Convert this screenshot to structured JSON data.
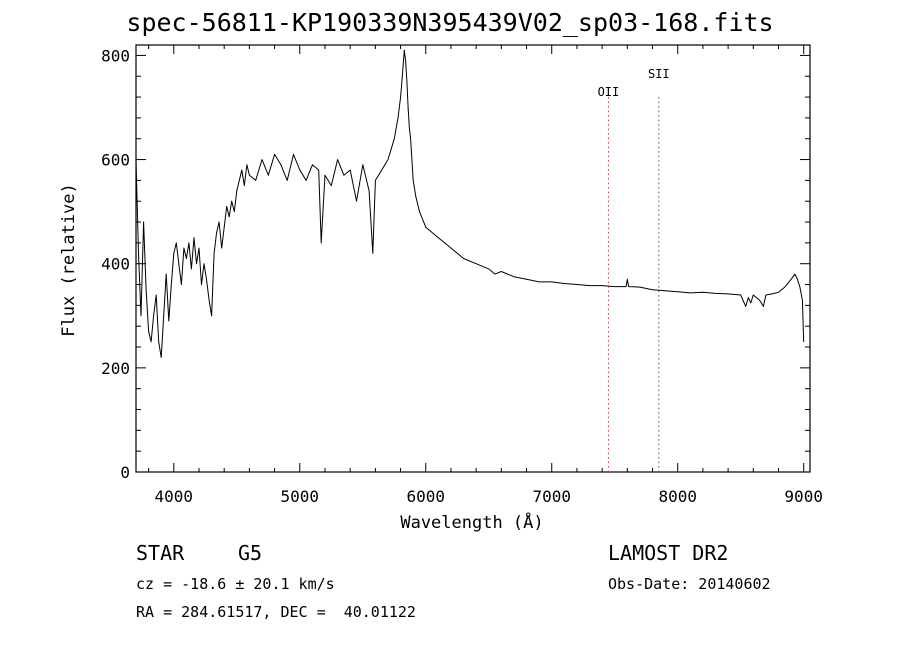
{
  "chart_data": {
    "type": "line",
    "title": "spec-56811-KP190339N395439V02_sp03-168.fits",
    "xlabel": "Wavelength (Å)",
    "ylabel": "Flux (relative)",
    "xlim": [
      3700,
      9050
    ],
    "ylim": [
      0,
      820
    ],
    "xticks": [
      4000,
      5000,
      6000,
      7000,
      8000,
      9000
    ],
    "yticks": [
      0,
      200,
      400,
      600,
      800
    ],
    "grid": false,
    "line_color": "#000000",
    "line_markers": [
      {
        "label": "OII",
        "x": 7450,
        "color": "#cc3333",
        "style": "dotted"
      },
      {
        "label": "SII",
        "x": 7850,
        "color": "#555555",
        "style": "dotted"
      }
    ],
    "series": [
      {
        "x": [
          3700,
          3720,
          3740,
          3760,
          3780,
          3800,
          3820,
          3840,
          3860,
          3880,
          3900,
          3920,
          3940,
          3960,
          3980,
          4000,
          4020,
          4040,
          4060,
          4080,
          4100,
          4120,
          4140,
          4160,
          4180,
          4200,
          4220,
          4240,
          4260,
          4280,
          4300,
          4320,
          4340,
          4360,
          4380,
          4400,
          4420,
          4440,
          4460,
          4480,
          4500,
          4520,
          4540,
          4560,
          4580,
          4600,
          4650,
          4700,
          4750,
          4800,
          4850,
          4900,
          4950,
          5000,
          5050,
          5100,
          5150,
          5170,
          5200,
          5250,
          5300,
          5350,
          5400,
          5450,
          5500,
          5550,
          5580,
          5600,
          5650,
          5700,
          5750,
          5780,
          5800,
          5820,
          5830,
          5840,
          5850,
          5860,
          5870,
          5880,
          5900,
          5920,
          5950,
          6000,
          6050,
          6100,
          6150,
          6200,
          6250,
          6300,
          6400,
          6500,
          6550,
          6600,
          6700,
          6800,
          6900,
          7000,
          7100,
          7200,
          7300,
          7400,
          7500,
          7590,
          7600,
          7610,
          7700,
          7800,
          7900,
          8000,
          8100,
          8200,
          8300,
          8400,
          8500,
          8540,
          8560,
          8580,
          8600,
          8650,
          8680,
          8700,
          8750,
          8800,
          8850,
          8900,
          8930,
          8950,
          8970,
          8990,
          9000
        ],
        "y": [
          600,
          420,
          300,
          480,
          350,
          270,
          250,
          300,
          340,
          250,
          220,
          300,
          380,
          290,
          360,
          420,
          440,
          400,
          360,
          430,
          410,
          440,
          390,
          450,
          400,
          430,
          360,
          400,
          370,
          330,
          300,
          420,
          460,
          480,
          430,
          470,
          510,
          490,
          520,
          500,
          540,
          560,
          580,
          550,
          590,
          570,
          560,
          600,
          570,
          610,
          590,
          560,
          610,
          580,
          560,
          590,
          580,
          440,
          570,
          550,
          600,
          570,
          580,
          520,
          590,
          540,
          420,
          560,
          580,
          600,
          640,
          680,
          720,
          780,
          810,
          790,
          750,
          700,
          660,
          640,
          560,
          530,
          500,
          470,
          460,
          450,
          440,
          430,
          420,
          410,
          400,
          390,
          380,
          385,
          375,
          370,
          365,
          365,
          362,
          360,
          358,
          358,
          356,
          356,
          370,
          356,
          355,
          350,
          348,
          346,
          344,
          345,
          343,
          342,
          340,
          318,
          335,
          325,
          340,
          330,
          318,
          340,
          342,
          345,
          355,
          370,
          380,
          370,
          355,
          330,
          250
        ]
      }
    ]
  },
  "info": {
    "object_class": "STAR",
    "subclass": "G5",
    "redshift_line": "cz = -18.6 ± 20.1 km/s",
    "coords_line": "RA = 284.61517, DEC =  40.01122",
    "survey": "LAMOST DR2",
    "obs_date": "Obs-Date: 20140602"
  }
}
